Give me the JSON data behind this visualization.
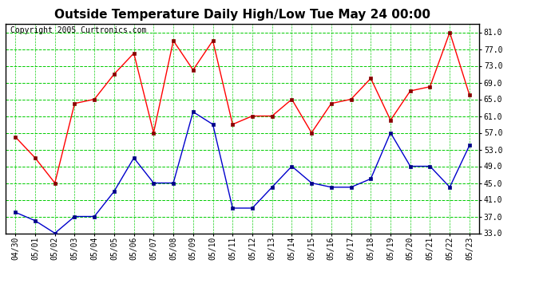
{
  "title": "Outside Temperature Daily High/Low Tue May 24 00:00",
  "copyright": "Copyright 2005 Curtronics.com",
  "dates": [
    "04/30",
    "05/01",
    "05/02",
    "05/03",
    "05/04",
    "05/05",
    "05/06",
    "05/07",
    "05/08",
    "05/09",
    "05/10",
    "05/11",
    "05/12",
    "05/13",
    "05/14",
    "05/15",
    "05/16",
    "05/17",
    "05/18",
    "05/19",
    "05/20",
    "05/21",
    "05/22",
    "05/23"
  ],
  "high": [
    56,
    51,
    45,
    64,
    65,
    71,
    76,
    57,
    79,
    72,
    79,
    59,
    61,
    61,
    65,
    57,
    64,
    65,
    70,
    60,
    67,
    68,
    81,
    66
  ],
  "low": [
    38,
    36,
    33,
    37,
    37,
    43,
    51,
    45,
    45,
    62,
    59,
    39,
    39,
    44,
    49,
    45,
    44,
    44,
    46,
    57,
    49,
    49,
    44,
    54
  ],
  "high_color": "#ff0000",
  "low_color": "#0000cc",
  "bg_color": "#ffffff",
  "plot_bg_color": "#ffffff",
  "grid_major_color": "#00cc00",
  "grid_minor_color": "#ccffcc",
  "border_color": "#000000",
  "title_fontsize": 11,
  "copyright_fontsize": 7,
  "ylim": [
    33,
    83
  ],
  "yticks": [
    33,
    37,
    41,
    45,
    49,
    53,
    57,
    61,
    65,
    69,
    73,
    77,
    81
  ],
  "ytick_labels": [
    "33.0",
    "37.0",
    "41.0",
    "45.0",
    "49.0",
    "53.0",
    "57.0",
    "61.0",
    "65.0",
    "69.0",
    "73.0",
    "77.0",
    "81.0"
  ]
}
